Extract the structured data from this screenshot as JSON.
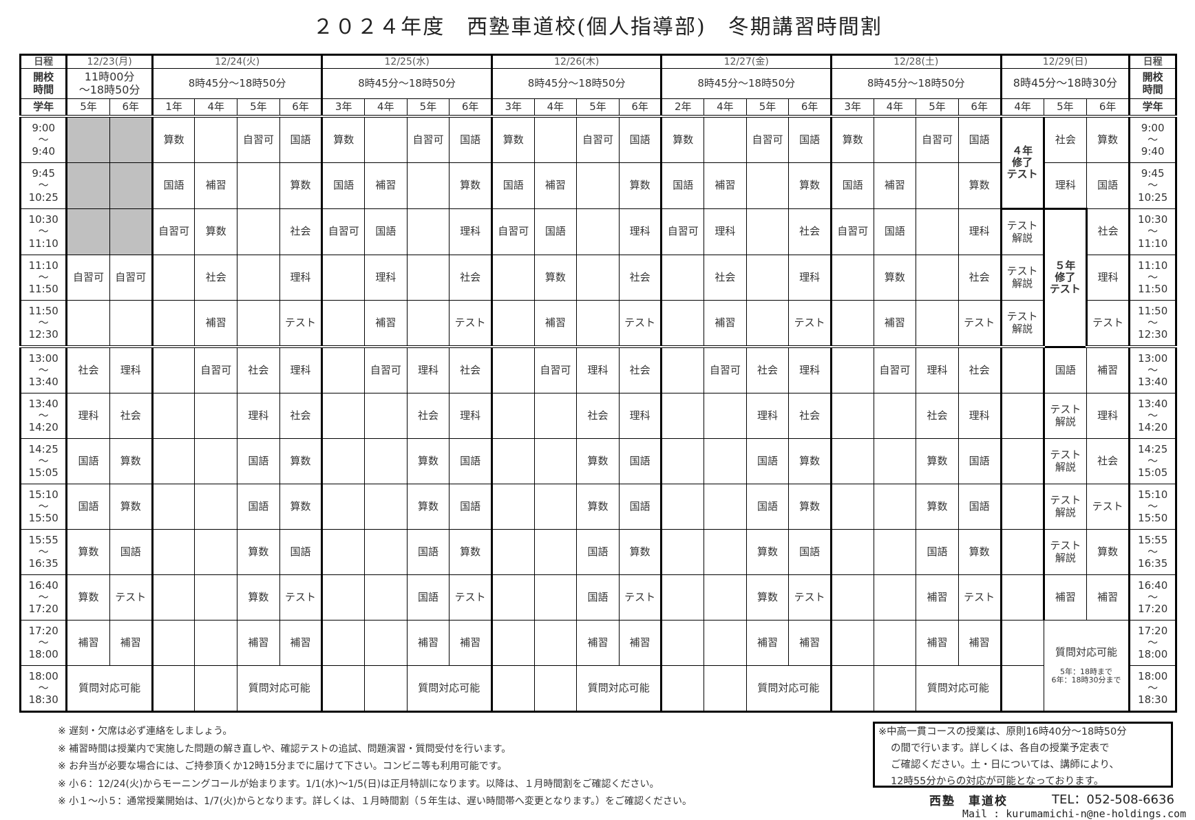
{
  "title": "２０２４年度　西塾車道校(個人指導部)　冬期講習時間割",
  "labels": {
    "schedule": "日程",
    "hours": "開校時間",
    "grade": "学年"
  },
  "days": [
    {
      "date": "12/23(月)",
      "hours": "11時00分\n～18時50分",
      "grades": [
        "5年",
        "6年"
      ]
    },
    {
      "date": "12/24(火)",
      "hours": "8時45分～18時50分",
      "grades": [
        "1年",
        "4年",
        "5年",
        "6年"
      ]
    },
    {
      "date": "12/25(水)",
      "hours": "8時45分～18時50分",
      "grades": [
        "3年",
        "4年",
        "5年",
        "6年"
      ]
    },
    {
      "date": "12/26(木)",
      "hours": "8時45分～18時50分",
      "grades": [
        "3年",
        "4年",
        "5年",
        "6年"
      ]
    },
    {
      "date": "12/27(金)",
      "hours": "8時45分～18時50分",
      "grades": [
        "2年",
        "4年",
        "5年",
        "6年"
      ]
    },
    {
      "date": "12/28(土)",
      "hours": "8時45分～18時50分",
      "grades": [
        "3年",
        "4年",
        "5年",
        "6年"
      ]
    },
    {
      "date": "12/29(日)",
      "hours": "8時45分～18時30分",
      "grades": [
        "4年",
        "5年",
        "6年"
      ]
    }
  ],
  "rows": [
    {
      "start": "9:00",
      "end": "9:40",
      "cells": [
        {
          "text": "",
          "shaded": true
        },
        {
          "text": "",
          "shaded": true
        },
        "算数",
        "",
        "自習可",
        "国語",
        "算数",
        "",
        "自習可",
        "国語",
        "算数",
        "",
        "自習可",
        "国語",
        "算数",
        "",
        "自習可",
        "国語",
        "算数",
        "",
        "自習可",
        "国語",
        {
          "text": "４年修了テスト",
          "rows": 2,
          "box": true
        },
        "社会",
        "算数"
      ]
    },
    {
      "start": "9:45",
      "end": "10:25",
      "cells": [
        {
          "text": "",
          "shaded": true
        },
        {
          "text": "",
          "shaded": true
        },
        "国語",
        "補習",
        "",
        "算数",
        "国語",
        "補習",
        "",
        "算数",
        "国語",
        "補習",
        "",
        "算数",
        "国語",
        "補習",
        "",
        "算数",
        "国語",
        "補習",
        "",
        "算数",
        null,
        "理科",
        "国語"
      ]
    },
    {
      "start": "10:30",
      "end": "11:10",
      "cells": [
        {
          "text": "",
          "shaded": true
        },
        {
          "text": "",
          "shaded": true
        },
        "自習可",
        "算数",
        "",
        "社会",
        "自習可",
        "国語",
        "",
        "理科",
        "自習可",
        "国語",
        "",
        "理科",
        "自習可",
        "理科",
        "",
        "社会",
        "自習可",
        "国語",
        "",
        "理科",
        "テスト解説",
        {
          "text": "５年修了テスト",
          "rows": 3,
          "box": true
        },
        "社会"
      ]
    },
    {
      "start": "11:10",
      "end": "11:50",
      "cells": [
        "自習可",
        "自習可",
        "",
        "社会",
        "",
        "理科",
        "",
        "理科",
        "",
        "社会",
        "",
        "算数",
        "",
        "社会",
        "",
        "社会",
        "",
        "理科",
        "",
        "算数",
        "",
        "社会",
        "テスト解説",
        null,
        "理科"
      ]
    },
    {
      "start": "11:50",
      "end": "12:30",
      "cells": [
        "",
        "",
        "",
        "補習",
        "",
        "テスト",
        "",
        "補習",
        "",
        "テスト",
        "",
        "補習",
        "",
        "テスト",
        "",
        "補習",
        "",
        "テスト",
        "",
        "補習",
        "",
        "テスト",
        "テスト解説",
        null,
        "テスト"
      ]
    },
    {
      "start": "13:00",
      "end": "13:40",
      "cells": [
        "社会",
        "理科",
        "",
        "自習可",
        "社会",
        "理科",
        "",
        "自習可",
        "理科",
        "社会",
        "",
        "自習可",
        "理科",
        "社会",
        "",
        "自習可",
        "社会",
        "理科",
        "",
        "自習可",
        "理科",
        "社会",
        "",
        "国語",
        "補習"
      ]
    },
    {
      "start": "13:40",
      "end": "14:20",
      "cells": [
        "理科",
        "社会",
        "",
        "",
        "理科",
        "社会",
        "",
        "",
        "社会",
        "理科",
        "",
        "",
        "社会",
        "理科",
        "",
        "",
        "理科",
        "社会",
        "",
        "",
        "社会",
        "理科",
        "",
        "テスト解説",
        "理科"
      ]
    },
    {
      "start": "14:25",
      "end": "15:05",
      "cells": [
        "国語",
        "算数",
        "",
        "",
        "国語",
        "算数",
        "",
        "",
        "算数",
        "国語",
        "",
        "",
        "算数",
        "国語",
        "",
        "",
        "国語",
        "算数",
        "",
        "",
        "算数",
        "国語",
        "",
        "テスト解説",
        "社会"
      ]
    },
    {
      "start": "15:10",
      "end": "15:50",
      "cells": [
        "国語",
        "算数",
        "",
        "",
        "国語",
        "算数",
        "",
        "",
        "算数",
        "国語",
        "",
        "",
        "算数",
        "国語",
        "",
        "",
        "国語",
        "算数",
        "",
        "",
        "算数",
        "国語",
        "",
        "テスト解説",
        "テスト"
      ]
    },
    {
      "start": "15:55",
      "end": "16:35",
      "cells": [
        "算数",
        "国語",
        "",
        "",
        "算数",
        "国語",
        "",
        "",
        "国語",
        "算数",
        "",
        "",
        "国語",
        "算数",
        "",
        "",
        "算数",
        "国語",
        "",
        "",
        "国語",
        "算数",
        "",
        "テスト解説",
        "算数"
      ]
    },
    {
      "start": "16:40",
      "end": "17:20",
      "cells": [
        "算数",
        "テスト",
        "",
        "",
        "算数",
        "テスト",
        "",
        "",
        "国語",
        "テスト",
        "",
        "",
        "国語",
        "テスト",
        "",
        "",
        "算数",
        "テスト",
        "",
        "",
        "補習",
        "テスト",
        "",
        "補習",
        "補習"
      ]
    },
    {
      "start": "17:20",
      "end": "18:00",
      "cells": [
        "補習",
        "補習",
        "",
        "",
        "補習",
        "補習",
        "",
        "",
        "補習",
        "補習",
        "",
        "",
        "補習",
        "補習",
        "",
        "",
        "補習",
        "補習",
        "",
        "",
        "補習",
        "補習",
        "",
        {
          "text": "質問対応可能",
          "note": [
            "5年：18時まで",
            "6年：18時30分まで"
          ],
          "rows": 2,
          "cols": 2
        },
        null
      ]
    },
    {
      "start": "18:00",
      "end": "18:30",
      "cells": [
        {
          "text": "質問対応可能",
          "cols": 2
        },
        null,
        "",
        "",
        {
          "text": "質問対応可能",
          "cols": 2
        },
        null,
        "",
        "",
        {
          "text": "質問対応可能",
          "cols": 2
        },
        null,
        "",
        "",
        {
          "text": "質問対応可能",
          "cols": 2
        },
        null,
        "",
        "",
        {
          "text": "質問対応可能",
          "cols": 2
        },
        null,
        "",
        "",
        {
          "text": "質問対応可能",
          "cols": 2
        },
        null,
        "",
        null,
        null
      ]
    }
  ],
  "notes": [
    "※ 遅刻・欠席は必ず連絡をしましょう。",
    "※ 補習時間は授業内で実施した問題の解き直しや、確認テストの追試、問題演習・質問受付を行います。",
    "※ お弁当が必要な場合には、ご持参頂くか12時15分までに届けて下さい。コンビニ等も利用可能です。",
    "※ 小６：12/24(火)からモーニングコールが始まります。1/1(水)～1/5(日)は正月特訓になります。以降は、１月時間割をご確認ください。",
    "※ 小１～小５：通常授業開始は、1/7(火)からとなります。詳しくは、１月時間割（５年生は、遅い時間帯へ変更となります。）をご確認ください。"
  ],
  "info_box": [
    "※中高一貫コースの授業は、原則16時40分～18時50分",
    "の間で行います。詳しくは、各自の授業予定表で",
    "ご確認ください。土・日については、講師により、",
    "12時55分からの対応が可能となっております。"
  ],
  "footer": {
    "school": "西塾　車道校",
    "tel": "TEL：052-508-6636",
    "mail": "Mail : kurumamichi-n@ne-holdings.com"
  },
  "colors": {
    "shaded": "#c0c0c0",
    "border": "#000000"
  }
}
